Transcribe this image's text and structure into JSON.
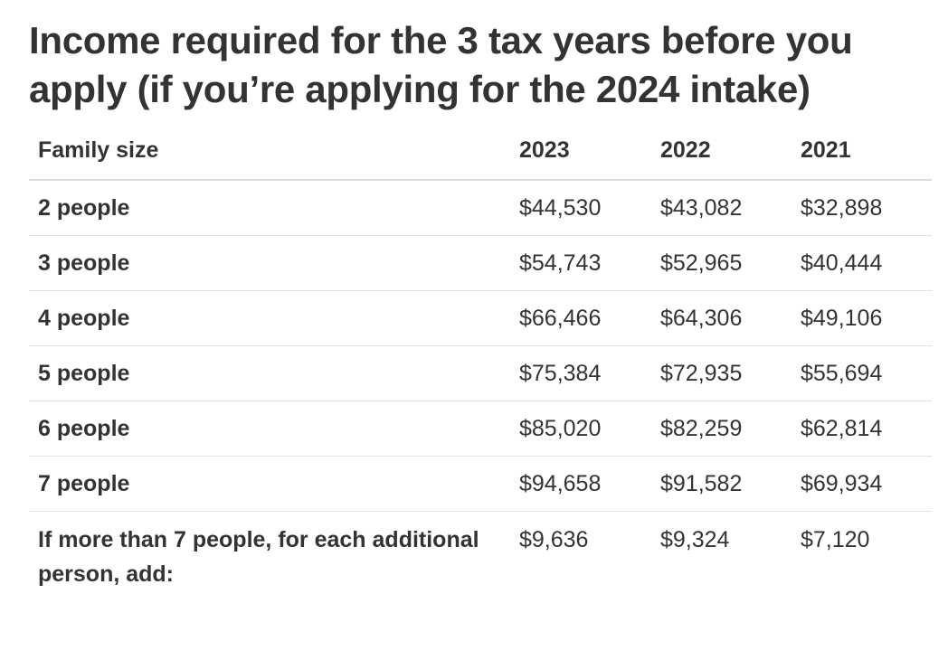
{
  "title": "Income required for the 3 tax years before you apply (if you’re applying for the 2024 intake)",
  "table": {
    "headers": [
      "Family size",
      "2023",
      "2022",
      "2021"
    ],
    "rows": [
      {
        "label": "2 people",
        "values": [
          "$44,530",
          "$43,082",
          "$32,898"
        ]
      },
      {
        "label": "3 people",
        "values": [
          "$54,743",
          "$52,965",
          "$40,444"
        ]
      },
      {
        "label": "4 people",
        "values": [
          "$66,466",
          "$64,306",
          "$49,106"
        ]
      },
      {
        "label": "5 people",
        "values": [
          "$75,384",
          "$72,935",
          "$55,694"
        ]
      },
      {
        "label": "6 people",
        "values": [
          "$85,020",
          "$82,259",
          "$62,814"
        ]
      },
      {
        "label": "7 people",
        "values": [
          "$94,658",
          "$91,582",
          "$69,934"
        ]
      },
      {
        "label": "If more than 7 people, for each additional person, add:",
        "values": [
          "$9,636",
          "$9,324",
          "$7,120"
        ]
      }
    ]
  }
}
